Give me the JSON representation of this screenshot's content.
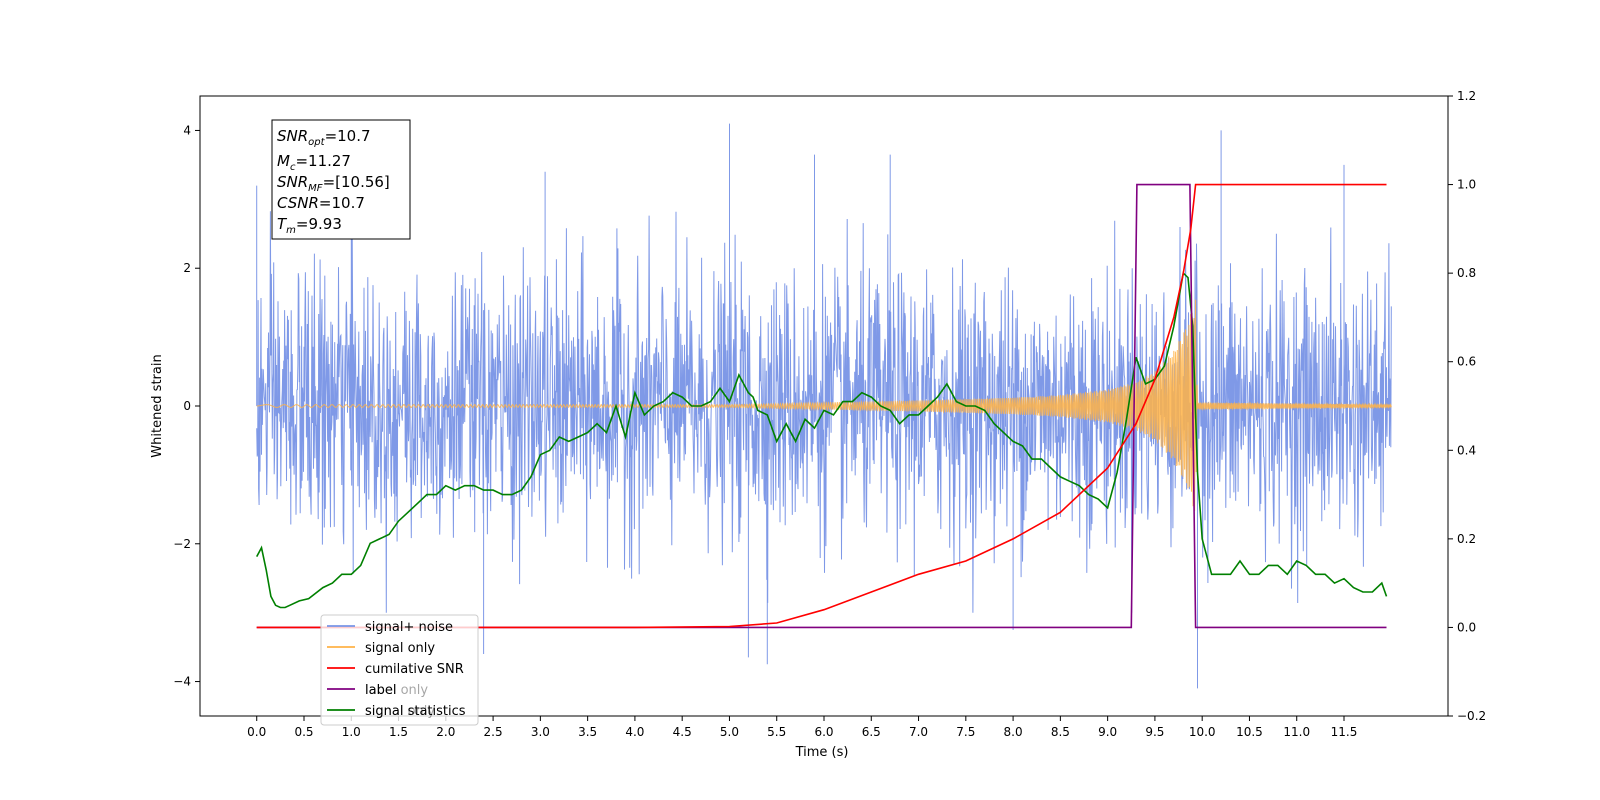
{
  "chart_data": {
    "type": "line",
    "xlabel": "Time (s)",
    "ylabel": "Whitened strain",
    "xlim": [
      -0.6,
      12.6
    ],
    "ylim": [
      -4.5,
      4.5
    ],
    "y2lim": [
      -0.2,
      1.2
    ],
    "xticks": [
      "0.0",
      "0.5",
      "1.0",
      "1.5",
      "2.0",
      "2.5",
      "3.0",
      "3.5",
      "4.0",
      "4.5",
      "5.0",
      "5.5",
      "6.0",
      "6.5",
      "7.0",
      "7.5",
      "8.0",
      "8.5",
      "9.0",
      "9.5",
      "10.0",
      "10.5",
      "11.0",
      "11.5"
    ],
    "yticks": [
      "4",
      "2",
      "0",
      "−2",
      "−4"
    ],
    "y2ticks": [
      "1.2",
      "1.0",
      "0.8",
      "0.6",
      "0.4",
      "0.2",
      "0.0",
      "−0.2"
    ],
    "annotation": {
      "snr_opt": "10.7",
      "mc": "11.27",
      "snr_mf": "[10.56]",
      "csnr": "10.7",
      "tm": "9.93"
    },
    "series": [
      {
        "name": "signal+ noise",
        "axis": "left",
        "color": "#7894e6",
        "note": "noise band approx ±2.5, peaks listed",
        "peaks": [
          [
            0.0,
            3.2
          ],
          [
            1.0,
            3.5
          ],
          [
            3.05,
            3.4
          ],
          [
            5.0,
            4.1
          ],
          [
            5.9,
            3.65
          ],
          [
            6.7,
            3.65
          ],
          [
            9.95,
            -4.1
          ],
          [
            10.2,
            4.0
          ],
          [
            11.5,
            3.5
          ],
          [
            5.4,
            -3.75
          ],
          [
            5.2,
            -3.65
          ],
          [
            8.0,
            -3.25
          ],
          [
            2.4,
            -3.6
          ]
        ]
      },
      {
        "name": "signal only",
        "axis": "left",
        "color": "#ffb347",
        "envelope": [
          [
            5.0,
            0.02
          ],
          [
            6.0,
            0.05
          ],
          [
            7.0,
            0.08
          ],
          [
            8.0,
            0.12
          ],
          [
            8.5,
            0.16
          ],
          [
            9.0,
            0.24
          ],
          [
            9.3,
            0.35
          ],
          [
            9.5,
            0.5
          ],
          [
            9.7,
            0.8
          ],
          [
            9.85,
            1.2
          ],
          [
            9.93,
            1.6
          ],
          [
            9.95,
            0.05
          ],
          [
            12.0,
            0.02
          ]
        ]
      },
      {
        "name": "cumilative SNR",
        "axis": "right",
        "color": "#ff0000",
        "x": [
          0.0,
          4.0,
          5.0,
          5.5,
          6.0,
          6.5,
          7.0,
          7.5,
          8.0,
          8.5,
          9.0,
          9.3,
          9.5,
          9.7,
          9.8,
          9.88,
          9.93,
          10.0,
          11.0,
          11.95
        ],
        "y": [
          0.0,
          0.0,
          0.002,
          0.01,
          0.04,
          0.08,
          0.12,
          0.15,
          0.2,
          0.26,
          0.36,
          0.46,
          0.56,
          0.7,
          0.8,
          0.9,
          1.0,
          1.0,
          1.0,
          1.0
        ]
      },
      {
        "name": "label",
        "axis": "right",
        "color": "#800080",
        "x": [
          0.0,
          9.25,
          9.31,
          9.87,
          9.93,
          11.95
        ],
        "y": [
          0.0,
          0.0,
          1.0,
          1.0,
          0.0,
          0.0
        ]
      },
      {
        "name": "signal statistics",
        "axis": "right",
        "color": "#008000",
        "x": [
          0.0,
          0.05,
          0.1,
          0.15,
          0.2,
          0.25,
          0.3,
          0.35,
          0.45,
          0.55,
          0.7,
          0.8,
          0.9,
          1.0,
          1.1,
          1.2,
          1.3,
          1.4,
          1.5,
          1.6,
          1.7,
          1.8,
          1.9,
          2.0,
          2.1,
          2.2,
          2.3,
          2.4,
          2.5,
          2.6,
          2.7,
          2.8,
          2.9,
          3.0,
          3.1,
          3.2,
          3.3,
          3.4,
          3.5,
          3.6,
          3.7,
          3.8,
          3.9,
          4.0,
          4.1,
          4.2,
          4.3,
          4.4,
          4.5,
          4.6,
          4.7,
          4.8,
          4.9,
          5.0,
          5.1,
          5.2,
          5.25,
          5.3,
          5.4,
          5.5,
          5.6,
          5.7,
          5.8,
          5.9,
          6.0,
          6.1,
          6.2,
          6.3,
          6.4,
          6.5,
          6.6,
          6.7,
          6.8,
          6.9,
          7.0,
          7.1,
          7.2,
          7.3,
          7.4,
          7.5,
          7.6,
          7.7,
          7.8,
          7.9,
          8.0,
          8.1,
          8.2,
          8.3,
          8.4,
          8.5,
          8.6,
          8.7,
          8.8,
          8.9,
          9.0,
          9.1,
          9.2,
          9.3,
          9.4,
          9.5,
          9.6,
          9.7,
          9.8,
          9.85,
          9.9,
          9.95,
          10.0,
          10.1,
          10.2,
          10.3,
          10.4,
          10.5,
          10.6,
          10.7,
          10.8,
          10.9,
          11.0,
          11.1,
          11.2,
          11.3,
          11.4,
          11.5,
          11.6,
          11.7,
          11.8,
          11.9,
          11.95
        ],
        "y": [
          0.16,
          0.18,
          0.13,
          0.07,
          0.05,
          0.045,
          0.045,
          0.05,
          0.06,
          0.065,
          0.09,
          0.1,
          0.12,
          0.12,
          0.14,
          0.19,
          0.2,
          0.21,
          0.24,
          0.26,
          0.28,
          0.3,
          0.3,
          0.32,
          0.31,
          0.32,
          0.32,
          0.31,
          0.31,
          0.3,
          0.3,
          0.31,
          0.34,
          0.39,
          0.4,
          0.43,
          0.42,
          0.43,
          0.44,
          0.46,
          0.44,
          0.5,
          0.43,
          0.53,
          0.48,
          0.5,
          0.51,
          0.53,
          0.52,
          0.5,
          0.5,
          0.51,
          0.54,
          0.51,
          0.57,
          0.53,
          0.52,
          0.49,
          0.48,
          0.42,
          0.46,
          0.42,
          0.47,
          0.45,
          0.49,
          0.48,
          0.51,
          0.51,
          0.53,
          0.52,
          0.5,
          0.49,
          0.46,
          0.48,
          0.48,
          0.5,
          0.52,
          0.55,
          0.51,
          0.5,
          0.5,
          0.49,
          0.46,
          0.44,
          0.42,
          0.41,
          0.38,
          0.38,
          0.36,
          0.34,
          0.33,
          0.32,
          0.3,
          0.29,
          0.27,
          0.35,
          0.47,
          0.61,
          0.55,
          0.56,
          0.59,
          0.68,
          0.8,
          0.79,
          0.68,
          0.35,
          0.2,
          0.12,
          0.12,
          0.12,
          0.15,
          0.12,
          0.12,
          0.14,
          0.14,
          0.12,
          0.15,
          0.14,
          0.12,
          0.12,
          0.1,
          0.11,
          0.09,
          0.08,
          0.08,
          0.1,
          0.07
        ]
      }
    ],
    "legend": {
      "placement": "lower-left",
      "entries": [
        {
          "label": "signal+ noise",
          "color": "#7894e6"
        },
        {
          "label": "signal only",
          "color": "#ffb347"
        },
        {
          "label": "cumilative SNR",
          "color": "#ff0000"
        },
        {
          "label": "label",
          "color": "#800080"
        },
        {
          "label": "signal statistics",
          "color": "#008000"
        }
      ],
      "ghost_text": [
        "label only",
        "signal only"
      ]
    }
  }
}
